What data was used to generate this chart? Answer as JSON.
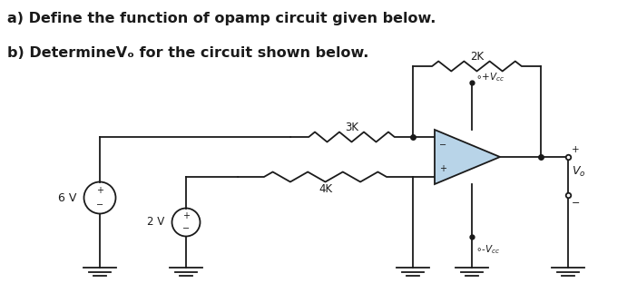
{
  "title_a": "a) Define the function of opamp circuit given below.",
  "title_b": "b) DetermineVₒ for the circuit shown below.",
  "bg_color": "#ffffff",
  "circuit_color": "#1a1a1a",
  "opamp_fill": "#b8d4e8",
  "label_2K": "2K",
  "label_3K": "3K",
  "label_4K": "4K",
  "label_6V": "6 V",
  "label_2V": "2 V",
  "fig_width": 7.02,
  "fig_height": 3.23,
  "dpi": 100
}
